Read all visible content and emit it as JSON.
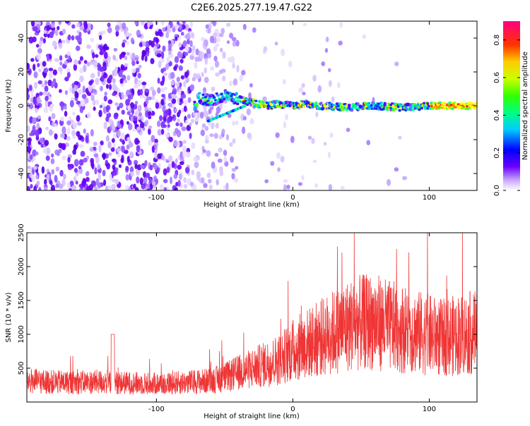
{
  "title": "C2E6.2025.277.19.47.G22",
  "chart_data": [
    {
      "type": "heatmap",
      "xlabel": "Height of straight line (km)",
      "ylabel": "Frequency (Hz)",
      "xlim": [
        -195,
        135
      ],
      "ylim": [
        -50,
        50
      ],
      "x_ticks": [
        -100,
        0,
        100
      ],
      "x_tick_labels": [
        "-100",
        "0",
        "100"
      ],
      "y_ticks": [
        -40,
        -20,
        0,
        20,
        40
      ],
      "y_tick_labels": [
        "-40",
        "-20",
        "0",
        "20",
        "40"
      ],
      "colorbar": {
        "label": "Normalized spectral amplitude",
        "range": [
          0,
          0.9
        ],
        "ticks": [
          0,
          0.2,
          0.4,
          0.6,
          0.8
        ],
        "tick_labels": [
          "0.0",
          "0.2",
          "0.4",
          "0.6",
          "0.8"
        ]
      },
      "ridge": [
        {
          "x": -70,
          "y": 5
        },
        {
          "x": -60,
          "y": 3
        },
        {
          "x": -50,
          "y": 6
        },
        {
          "x": -40,
          "y": 4
        },
        {
          "x": -30,
          "y": 2
        },
        {
          "x": -20,
          "y": 0
        },
        {
          "x": -10,
          "y": 1
        },
        {
          "x": 0,
          "y": 0
        },
        {
          "x": 10,
          "y": 1
        },
        {
          "x": 20,
          "y": 0
        },
        {
          "x": 40,
          "y": -1
        },
        {
          "x": 60,
          "y": 0
        },
        {
          "x": 80,
          "y": -1
        },
        {
          "x": 100,
          "y": 0
        },
        {
          "x": 135,
          "y": 0
        }
      ],
      "grid": false
    },
    {
      "type": "line",
      "xlabel": "Height of straight line (km)",
      "ylabel": "SNR (10 * v/v)",
      "xlim": [
        -195,
        135
      ],
      "ylim": [
        0,
        2500
      ],
      "x_ticks": [
        -100,
        0,
        100
      ],
      "x_tick_labels": [
        "-100",
        "0",
        "100"
      ],
      "y_ticks": [
        500,
        1000,
        1500,
        2000,
        2500
      ],
      "y_tick_labels": [
        "500",
        "1000",
        "1500",
        "2000",
        "2500"
      ],
      "series_color": "#ef3535",
      "x": [
        -195,
        -180,
        -160,
        -140,
        -120,
        -100,
        -80,
        -60,
        -50,
        -40,
        -30,
        -20,
        -10,
        0,
        10,
        20,
        30,
        40,
        50,
        60,
        70,
        80,
        90,
        100,
        110,
        120,
        135
      ],
      "values": [
        350,
        330,
        320,
        330,
        310,
        300,
        320,
        350,
        400,
        480,
        550,
        620,
        700,
        850,
        950,
        1050,
        1150,
        1250,
        1300,
        1320,
        1250,
        1200,
        1150,
        1100,
        1050,
        1100,
        1150
      ],
      "grid": false
    }
  ]
}
